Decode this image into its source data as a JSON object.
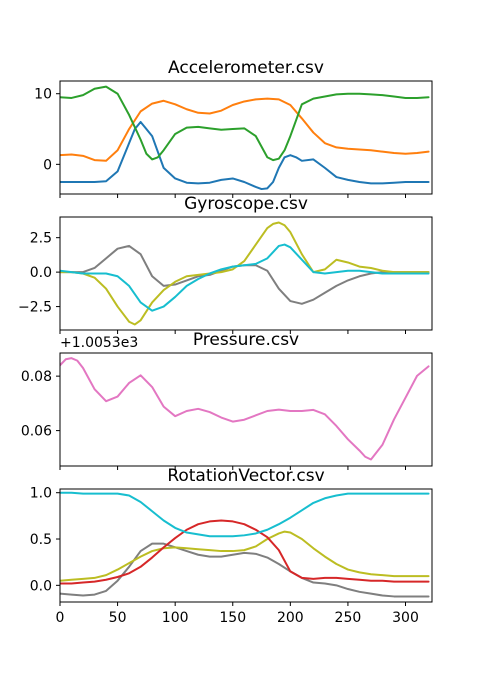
{
  "chart_data": [
    {
      "type": "line",
      "title": "Accelerometer.csv",
      "xlim": [
        0,
        323
      ],
      "ylim": [
        -4.2,
        11.8
      ],
      "y_ticks": [
        0,
        10
      ],
      "y_tick_labels": [
        "0",
        "10"
      ],
      "x_tick_labels_visible": false,
      "offset_text": "",
      "series": [
        {
          "color": "#1f77b4",
          "x": [
            0,
            10,
            20,
            30,
            40,
            50,
            60,
            65,
            70,
            80,
            90,
            100,
            110,
            120,
            130,
            140,
            150,
            160,
            170,
            175,
            180,
            185,
            190,
            195,
            200,
            205,
            210,
            220,
            230,
            240,
            250,
            260,
            270,
            280,
            290,
            300,
            310,
            320
          ],
          "y": [
            -2.5,
            -2.5,
            -2.5,
            -2.5,
            -2.4,
            -1,
            3,
            5,
            6,
            4,
            -0.5,
            -2,
            -2.6,
            -2.7,
            -2.6,
            -2.2,
            -2,
            -2.5,
            -3.2,
            -3.5,
            -3.4,
            -2.5,
            -0.5,
            1,
            1.3,
            1,
            0.5,
            0.7,
            -0.5,
            -1.8,
            -2.2,
            -2.5,
            -2.7,
            -2.7,
            -2.6,
            -2.5,
            -2.5,
            -2.5
          ]
        },
        {
          "color": "#ff7f0e",
          "x": [
            0,
            10,
            20,
            30,
            40,
            50,
            60,
            70,
            80,
            90,
            100,
            110,
            120,
            130,
            140,
            150,
            160,
            170,
            180,
            190,
            200,
            210,
            220,
            230,
            240,
            250,
            260,
            270,
            280,
            290,
            300,
            310,
            320
          ],
          "y": [
            1.3,
            1.4,
            1.2,
            0.6,
            0.5,
            2,
            5,
            7.5,
            8.6,
            9,
            8.5,
            7.8,
            7.3,
            7.2,
            7.6,
            8.4,
            8.9,
            9.2,
            9.3,
            9.2,
            8.4,
            6.5,
            4.5,
            3,
            2.4,
            2.2,
            2.1,
            2,
            1.8,
            1.6,
            1.5,
            1.6,
            1.8
          ]
        },
        {
          "color": "#2ca02c",
          "x": [
            0,
            10,
            20,
            30,
            40,
            50,
            60,
            70,
            75,
            80,
            85,
            90,
            100,
            110,
            120,
            130,
            140,
            150,
            160,
            170,
            180,
            185,
            190,
            195,
            200,
            210,
            220,
            230,
            240,
            250,
            260,
            270,
            280,
            290,
            300,
            310,
            320
          ],
          "y": [
            9.5,
            9.4,
            9.8,
            10.7,
            11,
            10,
            7,
            3.5,
            1.5,
            0.7,
            1,
            2,
            4.3,
            5.2,
            5.3,
            5.1,
            4.9,
            5,
            5.1,
            4,
            1,
            0.6,
            0.8,
            2,
            4,
            8.5,
            9.3,
            9.6,
            9.9,
            10,
            10,
            9.9,
            9.8,
            9.6,
            9.4,
            9.4,
            9.5
          ]
        }
      ]
    },
    {
      "type": "line",
      "title": "Gyroscope.csv",
      "xlim": [
        0,
        323
      ],
      "ylim": [
        -4.2,
        4.0
      ],
      "y_ticks": [
        -2.5,
        0,
        2.5
      ],
      "y_tick_labels": [
        "−2.5",
        "0.0",
        "2.5"
      ],
      "x_tick_labels_visible": false,
      "offset_text": "",
      "series": [
        {
          "color": "#7f7f7f",
          "x": [
            0,
            10,
            20,
            30,
            40,
            50,
            60,
            70,
            80,
            90,
            100,
            110,
            120,
            130,
            140,
            150,
            160,
            170,
            180,
            190,
            200,
            210,
            220,
            230,
            240,
            250,
            260,
            270,
            280,
            290,
            300,
            310,
            320
          ],
          "y": [
            0,
            0,
            0,
            0.3,
            1,
            1.7,
            1.9,
            1.3,
            -0.3,
            -1,
            -0.9,
            -0.6,
            -0.3,
            -0.2,
            0.1,
            0.4,
            0.5,
            0.5,
            0.1,
            -1.2,
            -2.1,
            -2.3,
            -2,
            -1.5,
            -1,
            -0.6,
            -0.3,
            -0.1,
            0,
            0,
            0,
            0,
            0
          ]
        },
        {
          "color": "#bcbd22",
          "x": [
            0,
            10,
            20,
            30,
            40,
            50,
            60,
            65,
            70,
            80,
            90,
            100,
            110,
            120,
            130,
            140,
            150,
            160,
            170,
            180,
            185,
            190,
            195,
            200,
            210,
            220,
            230,
            240,
            250,
            260,
            270,
            280,
            290,
            300,
            310,
            320
          ],
          "y": [
            0,
            0,
            -0.1,
            -0.4,
            -1.2,
            -2.5,
            -3.6,
            -3.8,
            -3.5,
            -2.2,
            -1.3,
            -0.7,
            -0.3,
            -0.2,
            -0.1,
            0,
            0.2,
            0.8,
            2,
            3.2,
            3.5,
            3.6,
            3.4,
            2.9,
            1.3,
            0,
            0.2,
            0.9,
            0.7,
            0.4,
            0.3,
            0.1,
            0,
            0,
            0,
            0
          ]
        },
        {
          "color": "#17becf",
          "x": [
            0,
            10,
            20,
            30,
            40,
            50,
            60,
            70,
            80,
            90,
            100,
            110,
            120,
            130,
            140,
            150,
            160,
            170,
            180,
            190,
            195,
            200,
            210,
            220,
            230,
            240,
            250,
            260,
            270,
            280,
            290,
            300,
            310,
            320
          ],
          "y": [
            0.1,
            0,
            -0.1,
            -0.1,
            -0.1,
            -0.3,
            -1,
            -2.2,
            -2.8,
            -2.5,
            -1.8,
            -1,
            -0.5,
            -0.1,
            0.2,
            0.4,
            0.5,
            0.6,
            1,
            1.9,
            2,
            1.8,
            0.9,
            0,
            -0.1,
            0,
            0.1,
            0.1,
            0,
            -0.1,
            -0.1,
            -0.1,
            -0.1,
            -0.1
          ]
        }
      ]
    },
    {
      "type": "line",
      "title": "Pressure.csv",
      "xlim": [
        0,
        323
      ],
      "ylim": [
        0.047,
        0.0885
      ],
      "y_ticks": [
        0.06,
        0.08
      ],
      "y_tick_labels": [
        "0.06",
        "0.08"
      ],
      "x_tick_labels_visible": false,
      "offset_text": "+1.0053e3",
      "series": [
        {
          "color": "#e377c2",
          "x": [
            0,
            5,
            10,
            15,
            20,
            30,
            40,
            50,
            60,
            70,
            80,
            90,
            100,
            110,
            120,
            130,
            140,
            150,
            160,
            170,
            180,
            190,
            200,
            210,
            220,
            230,
            240,
            250,
            260,
            265,
            270,
            280,
            290,
            300,
            310,
            320
          ],
          "y": [
            0.084,
            0.0862,
            0.0866,
            0.0857,
            0.083,
            0.0752,
            0.0708,
            0.0725,
            0.0775,
            0.0803,
            0.076,
            0.0688,
            0.0653,
            0.0672,
            0.068,
            0.0668,
            0.0648,
            0.0633,
            0.064,
            0.0656,
            0.0672,
            0.0677,
            0.0672,
            0.0672,
            0.0676,
            0.066,
            0.0617,
            0.0568,
            0.0527,
            0.0504,
            0.0494,
            0.0548,
            0.0641,
            0.0721,
            0.0801,
            0.0836
          ]
        }
      ]
    },
    {
      "type": "line",
      "title": "RotationVector.csv",
      "xlim": [
        0,
        323
      ],
      "ylim": [
        -0.18,
        1.04
      ],
      "y_ticks": [
        0,
        0.5,
        1
      ],
      "y_tick_labels": [
        "0.0",
        "0.5",
        "1.0"
      ],
      "x_ticks": [
        0,
        50,
        100,
        150,
        200,
        250,
        300
      ],
      "x_tick_labels": [
        "0",
        "50",
        "100",
        "150",
        "200",
        "250",
        "300"
      ],
      "x_tick_labels_visible": true,
      "offset_text": "",
      "series": [
        {
          "color": "#7f7f7f",
          "x": [
            0,
            10,
            20,
            30,
            40,
            50,
            60,
            70,
            80,
            90,
            100,
            110,
            120,
            130,
            140,
            150,
            160,
            170,
            180,
            190,
            200,
            210,
            220,
            230,
            240,
            250,
            260,
            270,
            280,
            290,
            300,
            310,
            320
          ],
          "y": [
            -0.09,
            -0.1,
            -0.11,
            -0.1,
            -0.06,
            0.05,
            0.2,
            0.37,
            0.45,
            0.45,
            0.41,
            0.37,
            0.33,
            0.31,
            0.31,
            0.33,
            0.35,
            0.34,
            0.3,
            0.23,
            0.15,
            0.08,
            0.03,
            0.02,
            0,
            -0.04,
            -0.07,
            -0.09,
            -0.11,
            -0.12,
            -0.12,
            -0.12,
            -0.12
          ]
        },
        {
          "color": "#bcbd22",
          "x": [
            0,
            10,
            20,
            30,
            40,
            50,
            60,
            70,
            80,
            90,
            100,
            110,
            120,
            130,
            140,
            150,
            160,
            170,
            180,
            190,
            195,
            200,
            210,
            220,
            230,
            240,
            250,
            260,
            270,
            280,
            290,
            300,
            310,
            320
          ],
          "y": [
            0.05,
            0.06,
            0.07,
            0.08,
            0.11,
            0.17,
            0.24,
            0.31,
            0.37,
            0.4,
            0.41,
            0.4,
            0.39,
            0.38,
            0.37,
            0.37,
            0.38,
            0.42,
            0.5,
            0.56,
            0.58,
            0.57,
            0.5,
            0.4,
            0.31,
            0.23,
            0.17,
            0.14,
            0.12,
            0.11,
            0.1,
            0.1,
            0.1,
            0.1
          ]
        },
        {
          "color": "#d62728",
          "x": [
            0,
            10,
            20,
            30,
            40,
            50,
            60,
            70,
            80,
            90,
            100,
            110,
            120,
            130,
            140,
            150,
            160,
            170,
            180,
            190,
            200,
            210,
            220,
            230,
            240,
            250,
            260,
            270,
            280,
            290,
            300,
            310,
            320
          ],
          "y": [
            0.02,
            0.02,
            0.03,
            0.04,
            0.06,
            0.09,
            0.13,
            0.2,
            0.3,
            0.41,
            0.51,
            0.6,
            0.66,
            0.69,
            0.7,
            0.69,
            0.66,
            0.6,
            0.52,
            0.38,
            0.15,
            0.08,
            0.07,
            0.08,
            0.08,
            0.07,
            0.06,
            0.05,
            0.05,
            0.04,
            0.04,
            0.04,
            0.04
          ]
        },
        {
          "color": "#17becf",
          "x": [
            0,
            10,
            20,
            30,
            40,
            50,
            60,
            70,
            80,
            90,
            100,
            110,
            120,
            130,
            140,
            150,
            160,
            170,
            180,
            190,
            200,
            210,
            220,
            230,
            240,
            250,
            260,
            270,
            280,
            290,
            300,
            310,
            320
          ],
          "y": [
            1,
            1,
            0.99,
            0.99,
            0.99,
            0.99,
            0.97,
            0.9,
            0.8,
            0.7,
            0.62,
            0.57,
            0.55,
            0.53,
            0.53,
            0.53,
            0.54,
            0.56,
            0.6,
            0.66,
            0.73,
            0.81,
            0.89,
            0.94,
            0.97,
            0.99,
            0.99,
            0.99,
            0.99,
            0.99,
            0.99,
            0.99,
            0.99
          ]
        }
      ]
    }
  ]
}
